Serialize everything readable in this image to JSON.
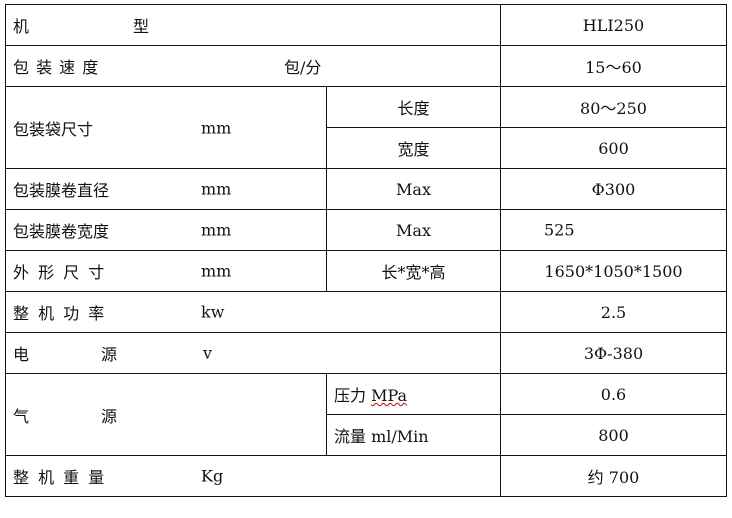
{
  "rows": [
    {
      "label_a": "机",
      "label_b": "型",
      "value": "HLI250"
    },
    {
      "label": "包 装 速 度",
      "unit": "包/分",
      "value": "15～60"
    },
    {
      "label": "包装袋尺寸",
      "unit": "mm",
      "sub": [
        {
          "name": "长度",
          "value": "80～250"
        },
        {
          "name": "宽度",
          "value": "600"
        }
      ]
    },
    {
      "label": "包装膜卷直径",
      "unit": "mm",
      "param": "Max",
      "value": "Φ300"
    },
    {
      "label": "包装膜卷宽度",
      "unit": "mm",
      "param": "Max",
      "value": "525"
    },
    {
      "label": "外 形 尺 寸",
      "unit": "mm",
      "param": "长*宽*高",
      "value": "1650*1050*1500"
    },
    {
      "label": "整 机 功 率",
      "unit": "kw",
      "value": "2.5"
    },
    {
      "label_a": "电",
      "label_b": "源",
      "unit": "v",
      "value": "3Φ-380"
    },
    {
      "label_a": "气",
      "label_b": "源",
      "sub": [
        {
          "name": "压力",
          "unit": "MPa",
          "value": "0.6"
        },
        {
          "name": "流量",
          "unit": "ml/Min",
          "value": "800"
        }
      ]
    },
    {
      "label": "整 机 重 量",
      "unit": "Kg",
      "value": "约 700"
    }
  ]
}
